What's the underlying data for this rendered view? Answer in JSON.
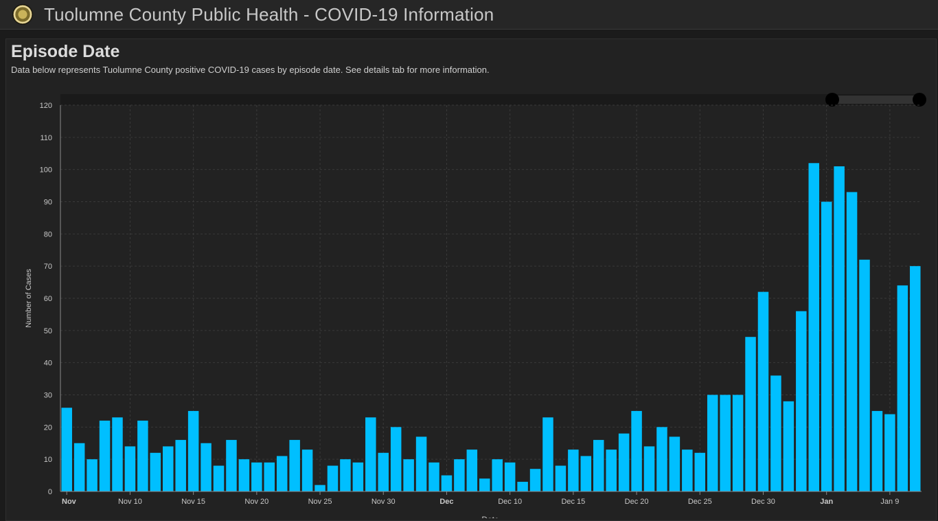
{
  "header": {
    "title": "Tuolumne County Public Health - COVID-19 Information"
  },
  "panel": {
    "title": "Episode Date",
    "subtitle": "Data below represents Tuolumne County positive COVID-19 cases by episode date. See details tab for more information."
  },
  "chart_data": {
    "type": "bar",
    "xlabel": "Date",
    "ylabel": "Number of Cases",
    "ylim": [
      0,
      120
    ],
    "yticks": [
      0,
      10,
      20,
      30,
      40,
      50,
      60,
      70,
      80,
      90,
      100,
      110,
      120
    ],
    "grid": true,
    "bar_color": "#00bfff",
    "x_tick_labels": [
      {
        "index": 0,
        "label": "Nov",
        "bold": true
      },
      {
        "index": 5,
        "label": "Nov 10",
        "bold": false
      },
      {
        "index": 10,
        "label": "Nov 15",
        "bold": false
      },
      {
        "index": 15,
        "label": "Nov 20",
        "bold": false
      },
      {
        "index": 20,
        "label": "Nov 25",
        "bold": false
      },
      {
        "index": 25,
        "label": "Nov 30",
        "bold": false
      },
      {
        "index": 30,
        "label": "Dec",
        "bold": true
      },
      {
        "index": 35,
        "label": "Dec 10",
        "bold": false
      },
      {
        "index": 40,
        "label": "Dec 15",
        "bold": false
      },
      {
        "index": 45,
        "label": "Dec 20",
        "bold": false
      },
      {
        "index": 50,
        "label": "Dec 25",
        "bold": false
      },
      {
        "index": 55,
        "label": "Dec 30",
        "bold": false
      },
      {
        "index": 60,
        "label": "Jan",
        "bold": true
      },
      {
        "index": 65,
        "label": "Jan 9",
        "bold": false
      }
    ],
    "values": [
      26,
      15,
      10,
      22,
      23,
      14,
      22,
      12,
      14,
      16,
      25,
      15,
      8,
      16,
      10,
      9,
      9,
      11,
      16,
      13,
      2,
      8,
      10,
      9,
      23,
      12,
      20,
      10,
      17,
      9,
      5,
      10,
      13,
      4,
      10,
      9,
      3,
      7,
      23,
      8,
      13,
      11,
      16,
      13,
      18,
      25,
      14,
      20,
      17,
      13,
      12,
      30,
      30,
      30,
      48,
      62,
      36,
      28,
      56,
      102,
      90,
      101,
      93,
      72,
      25,
      24,
      64,
      70
    ]
  }
}
